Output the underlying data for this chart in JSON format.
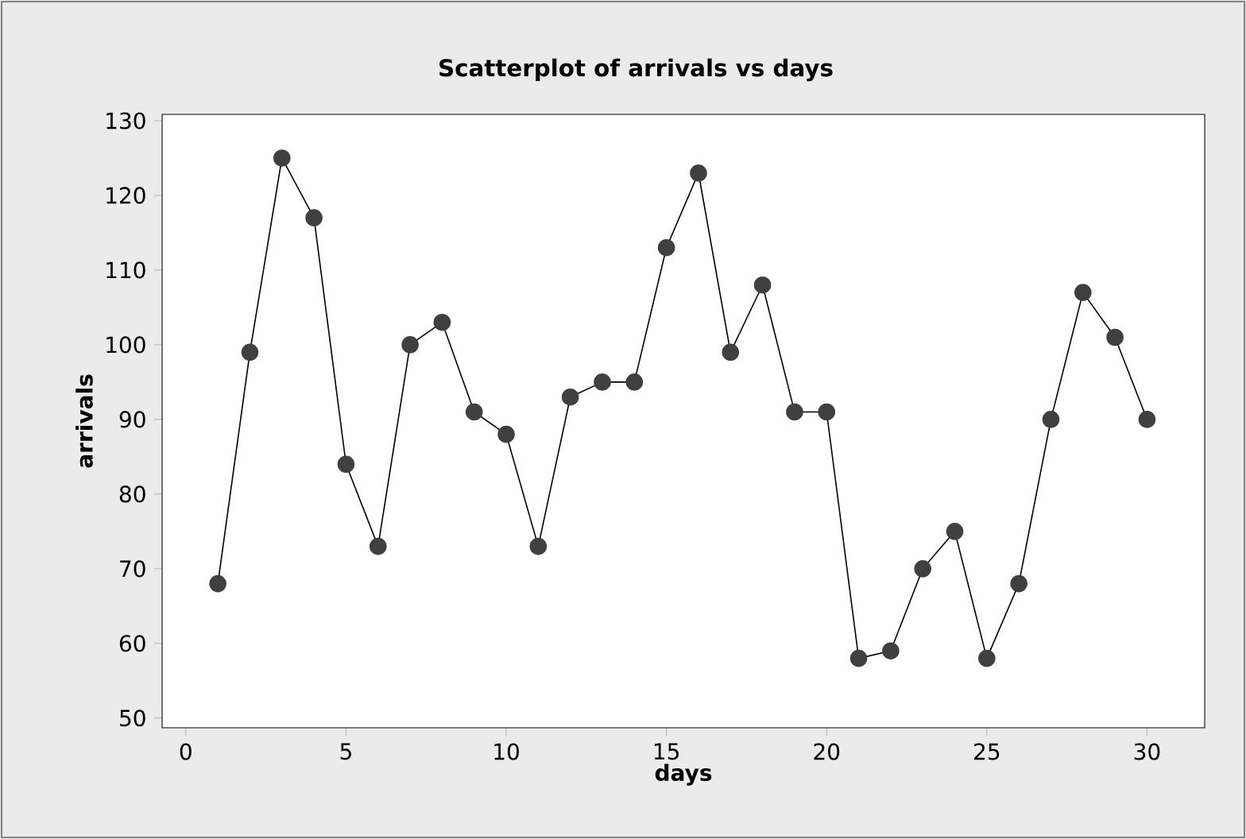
{
  "chart_data": {
    "type": "line",
    "title": "Scatterplot of arrivals vs days",
    "xlabel": "days",
    "ylabel": "arrivals",
    "x": [
      1,
      2,
      3,
      4,
      5,
      6,
      7,
      8,
      9,
      10,
      11,
      12,
      13,
      14,
      15,
      16,
      17,
      18,
      19,
      20,
      21,
      22,
      23,
      24,
      25,
      26,
      27,
      28,
      29,
      30
    ],
    "values": [
      68,
      99,
      125,
      117,
      84,
      73,
      100,
      103,
      91,
      88,
      73,
      93,
      95,
      95,
      113,
      123,
      99,
      108,
      91,
      91,
      58,
      59,
      70,
      75,
      58,
      68,
      90,
      107,
      101,
      90
    ],
    "color": "#404040",
    "marker": "circle",
    "line_style": "solid",
    "xlim": [
      -0.74,
      31.8
    ],
    "ylim": [
      48.7,
      130.85
    ],
    "xticks": [
      0,
      5,
      10,
      15,
      20,
      25,
      30
    ],
    "yticks": [
      50,
      60,
      70,
      80,
      90,
      100,
      110,
      120,
      130
    ]
  }
}
